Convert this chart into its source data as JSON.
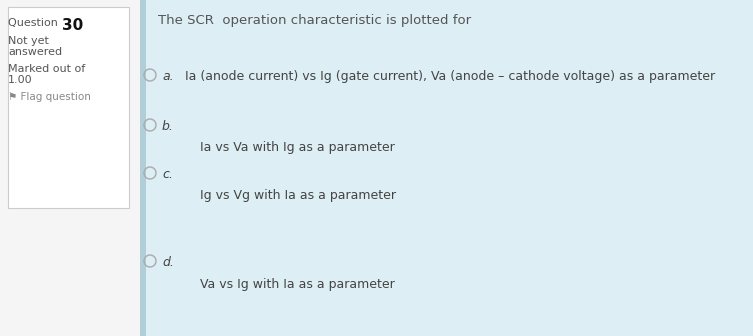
{
  "title": "The SCR  operation characteristic is plotted for",
  "left_bg": "#f5f5f5",
  "right_bg": "#ddeef4",
  "box_bg": "#ffffff",
  "box_border": "#cccccc",
  "options": [
    {
      "label": "a.",
      "text": "Ia (anode current) vs Ig (gate current), Va (anode – cathode voltage) as a parameter"
    },
    {
      "label": "b.",
      "text": "Ia vs Va with Ig as a parameter"
    },
    {
      "label": "c.",
      "text": "Ig vs Vg with Ia as a parameter"
    },
    {
      "label": "d.",
      "text": "Va vs Ig with Ia as a parameter"
    }
  ],
  "title_color": "#555555",
  "option_text_color": "#444444",
  "option_label_color": "#444444",
  "radio_color": "#aaaaaa",
  "font_size_title": 9.5,
  "font_size_options": 9.0,
  "font_size_left_label": 8.0,
  "font_size_left_content": 8.0,
  "question_color": "#555555",
  "number_color": "#111111",
  "flag_color": "#888888"
}
